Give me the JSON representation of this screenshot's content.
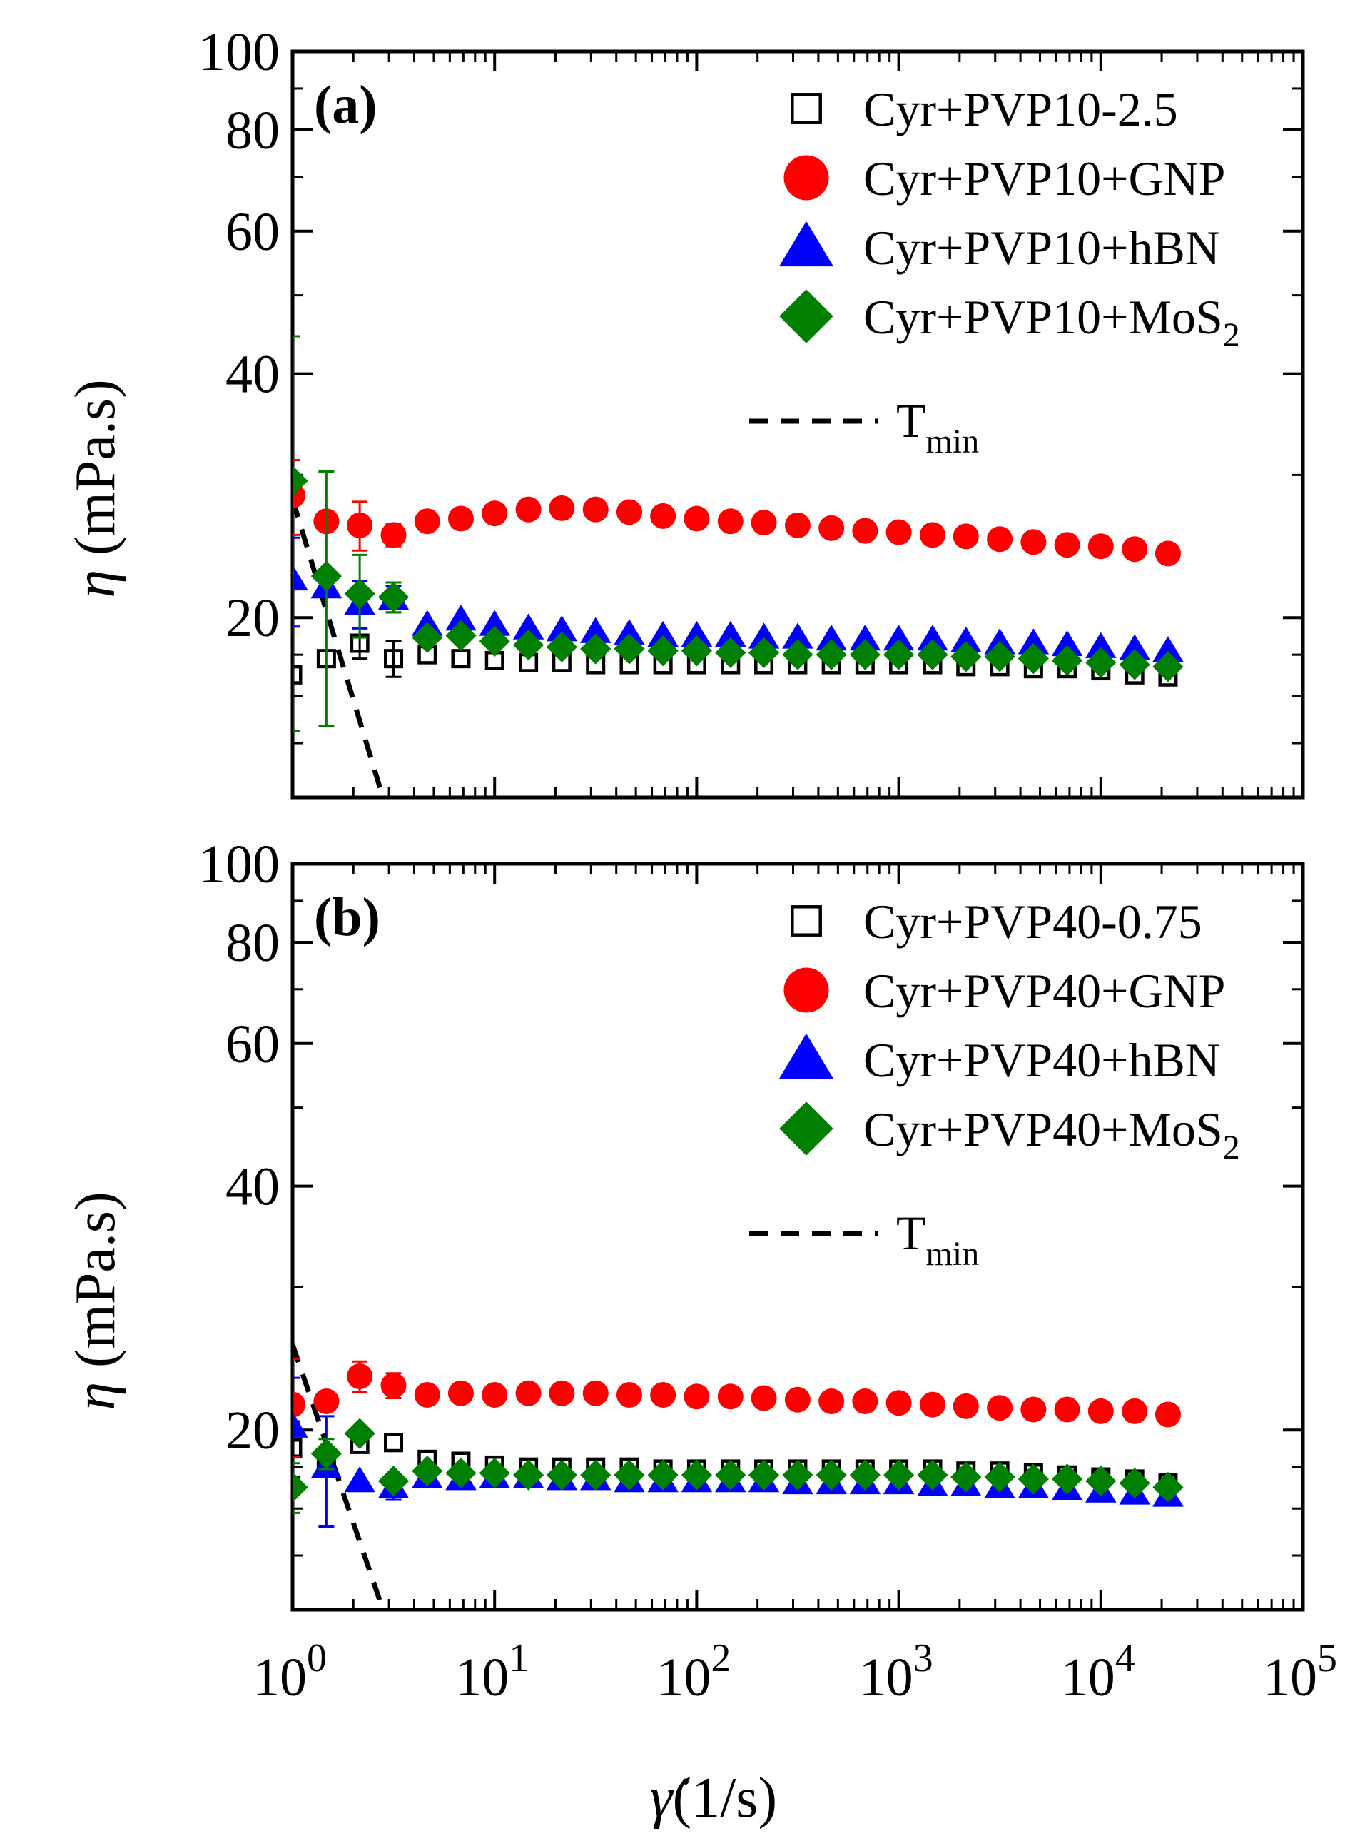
{
  "chart_data": [
    {
      "type": "scatter",
      "panel_label": "(a)",
      "xscale": "log",
      "yscale": "log",
      "xlim": [
        1,
        100000
      ],
      "ylim": [
        12,
        100
      ],
      "yticks": [
        20,
        40,
        60,
        80,
        100
      ],
      "ylabel_symbol": "η",
      "ylabel": "(mPa.s)",
      "legend_position": "top-right",
      "x": [
        1,
        1.47,
        2.15,
        3.16,
        4.64,
        6.81,
        10,
        14.7,
        21.5,
        31.6,
        46.4,
        68.1,
        100,
        147,
        215,
        316,
        464,
        681,
        1000,
        1470,
        2150,
        3160,
        4640,
        6810,
        10000,
        14700,
        21500
      ],
      "series": [
        {
          "name": "Cyr+PVP10-2.5",
          "marker": "open-square",
          "color": "#000000",
          "values": [
            17.0,
            17.8,
            18.6,
            17.8,
            18.0,
            17.8,
            17.7,
            17.6,
            17.6,
            17.5,
            17.5,
            17.5,
            17.5,
            17.5,
            17.5,
            17.5,
            17.5,
            17.5,
            17.5,
            17.5,
            17.4,
            17.4,
            17.3,
            17.3,
            17.2,
            17.0,
            16.9
          ],
          "errors": [
            0,
            0,
            0.8,
            0.9,
            0,
            0,
            0,
            0,
            0,
            0,
            0,
            0,
            0,
            0,
            0,
            0,
            0,
            0,
            0,
            0,
            0,
            0,
            0,
            0,
            0,
            0,
            0
          ]
        },
        {
          "name": "Cyr+PVP10+GNP",
          "marker": "circle",
          "color": "#ff0000",
          "values": [
            28.3,
            26.3,
            26.0,
            25.3,
            26.3,
            26.5,
            26.9,
            27.2,
            27.3,
            27.2,
            27.0,
            26.7,
            26.5,
            26.3,
            26.2,
            26.0,
            25.8,
            25.6,
            25.5,
            25.3,
            25.2,
            25.0,
            24.8,
            24.6,
            24.5,
            24.3,
            24.0
          ],
          "errors": [
            3.0,
            0,
            1.8,
            0.8,
            0,
            0,
            0,
            0,
            0,
            0,
            0,
            0,
            0,
            0,
            0,
            0,
            0,
            0,
            0,
            0,
            0,
            0,
            0,
            0,
            0,
            0,
            0
          ]
        },
        {
          "name": "Cyr+PVP10+hBN",
          "marker": "triangle",
          "color": "#0000ff",
          "values": [
            22.3,
            21.8,
            20.8,
            21.1,
            19.6,
            19.9,
            19.6,
            19.4,
            19.3,
            19.2,
            19.1,
            19.0,
            19.0,
            19.0,
            18.9,
            18.9,
            18.8,
            18.8,
            18.8,
            18.8,
            18.7,
            18.6,
            18.6,
            18.5,
            18.4,
            18.3,
            18.2
          ],
          "errors": [
            2.8,
            0,
            1.4,
            0.8,
            0,
            0,
            0,
            0,
            0,
            0,
            0,
            0,
            0,
            0,
            0,
            0,
            0,
            0,
            0,
            0,
            0,
            0,
            0,
            0,
            0,
            0,
            0
          ]
        },
        {
          "name": "Cyr+PVP10+MoS_2",
          "marker": "diamond",
          "color": "#007f00",
          "values": [
            29.5,
            22.5,
            21.4,
            21.2,
            18.9,
            19.0,
            18.7,
            18.5,
            18.4,
            18.3,
            18.3,
            18.2,
            18.2,
            18.1,
            18.1,
            18.0,
            18.0,
            18.0,
            18.0,
            18.0,
            17.9,
            17.9,
            17.8,
            17.7,
            17.6,
            17.5,
            17.4
          ],
          "errors": [
            15.0,
            7.8,
            2.5,
            0.9,
            0,
            0,
            0,
            0,
            0,
            0,
            0,
            0,
            0,
            0,
            0,
            0,
            0,
            0,
            0,
            0,
            0,
            0,
            0,
            0,
            0,
            0,
            0
          ]
        }
      ],
      "t_min": {
        "name": "T_min",
        "x": [
          1,
          2.8
        ],
        "y": [
          28,
          12
        ]
      }
    },
    {
      "type": "scatter",
      "panel_label": "(b)",
      "xscale": "log",
      "yscale": "log",
      "xlim": [
        1,
        100000
      ],
      "ylim": [
        12,
        100
      ],
      "yticks": [
        20,
        40,
        60,
        80,
        100
      ],
      "ylabel_symbol": "η",
      "ylabel": "(mPa.s)",
      "xlabel": "γ̇ (1/s)",
      "xticks": [
        "10^0",
        "10^1",
        "10^2",
        "10^3",
        "10^4",
        "10^5"
      ],
      "legend_position": "top-right",
      "x": [
        1,
        1.47,
        2.15,
        3.16,
        4.64,
        6.81,
        10,
        14.7,
        21.5,
        31.6,
        46.4,
        68.1,
        100,
        147,
        215,
        316,
        464,
        681,
        1000,
        1470,
        2150,
        3160,
        4640,
        6810,
        10000,
        14700,
        21500
      ],
      "series": [
        {
          "name": "Cyr+PVP40-0.75",
          "marker": "open-square",
          "color": "#000000",
          "values": [
            19.0,
            18.0,
            19.2,
            19.3,
            18.4,
            18.3,
            18.1,
            18.0,
            18.0,
            18.0,
            18.0,
            17.9,
            17.9,
            17.9,
            17.9,
            17.9,
            17.9,
            17.9,
            17.9,
            17.9,
            17.8,
            17.8,
            17.7,
            17.6,
            17.5,
            17.4,
            17.2
          ],
          "errors": [
            1.5,
            0,
            0,
            0,
            0,
            0,
            0,
            0,
            0,
            0,
            0,
            0,
            0,
            0,
            0,
            0,
            0,
            0,
            0,
            0,
            0,
            0,
            0,
            0,
            0,
            0,
            0
          ]
        },
        {
          "name": "Cyr+PVP40+GNP",
          "marker": "circle",
          "color": "#ff0000",
          "values": [
            21.5,
            21.7,
            23.3,
            22.7,
            22.1,
            22.2,
            22.1,
            22.2,
            22.2,
            22.2,
            22.1,
            22.1,
            22.0,
            22.0,
            21.9,
            21.8,
            21.7,
            21.7,
            21.6,
            21.5,
            21.4,
            21.3,
            21.2,
            21.2,
            21.1,
            21.1,
            20.9
          ],
          "errors": [
            3.0,
            0,
            1.0,
            0.8,
            0,
            0,
            0,
            0,
            0,
            0,
            0,
            0,
            0,
            0,
            0,
            0,
            0,
            0,
            0,
            0,
            0,
            0,
            0,
            0,
            0,
            0,
            0
          ]
        },
        {
          "name": "Cyr+PVP40+hBN",
          "marker": "triangle",
          "color": "#0000ff",
          "values": [
            20.2,
            18.0,
            17.3,
            17.0,
            17.5,
            17.4,
            17.5,
            17.5,
            17.4,
            17.4,
            17.3,
            17.3,
            17.3,
            17.3,
            17.3,
            17.2,
            17.2,
            17.2,
            17.2,
            17.1,
            17.1,
            17.0,
            17.0,
            16.9,
            16.8,
            16.7,
            16.6
          ],
          "errors": [
            3.0,
            2.8,
            0,
            0.6,
            0,
            0,
            0,
            0,
            0,
            0,
            0,
            0,
            0,
            0,
            0,
            0,
            0,
            0,
            0,
            0,
            0,
            0,
            0,
            0,
            0,
            0,
            0
          ]
        },
        {
          "name": "Cyr+PVP40+MoS_2",
          "marker": "diamond",
          "color": "#007f00",
          "values": [
            17.0,
            18.7,
            19.8,
            17.3,
            17.8,
            17.7,
            17.7,
            17.6,
            17.6,
            17.6,
            17.6,
            17.6,
            17.6,
            17.6,
            17.6,
            17.6,
            17.6,
            17.6,
            17.6,
            17.6,
            17.5,
            17.5,
            17.4,
            17.4,
            17.3,
            17.2,
            17.0
          ],
          "errors": [
            1.2,
            0.8,
            0,
            0,
            0,
            0,
            0,
            0,
            0,
            0,
            0,
            0,
            0,
            0,
            0,
            0,
            0,
            0,
            0,
            0,
            0,
            0,
            0,
            0,
            0,
            0,
            0
          ]
        }
      ],
      "t_min": {
        "name": "T_min",
        "x": [
          1,
          2.8
        ],
        "y": [
          25.5,
          12
        ]
      }
    }
  ]
}
